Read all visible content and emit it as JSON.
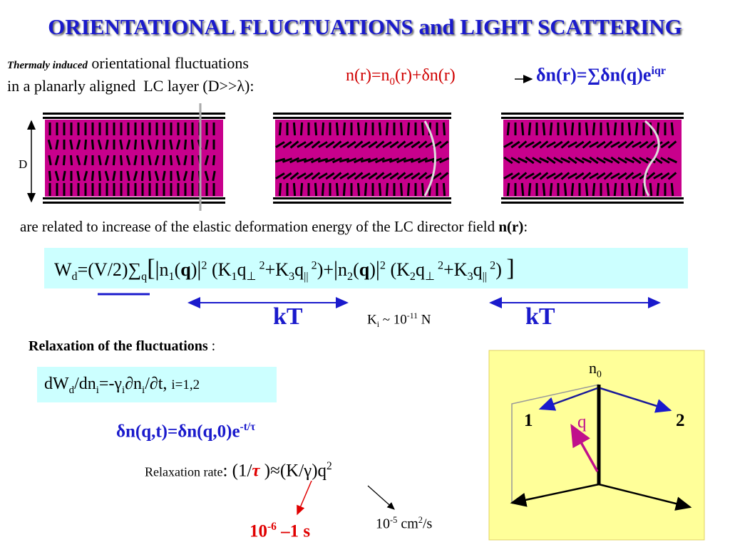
{
  "title": "ORIENTATIONAL FLUCTUATIONS and LIGHT SCATTERING",
  "intro": {
    "lead": "Thermaly induced",
    "line1": " orientational fluctuations",
    "line2": "in a planarly aligned  LC layer (D>>λ):"
  },
  "expansion": [
    "n(r)=n",
    "0",
    "(r)+δn(r)"
  ],
  "fourier": [
    "δn(r)=∑δn(q)e",
    "iqr"
  ],
  "layer_label": "D",
  "elastic": [
    "are related to increase of the elastic deformation energy of the LC director field ",
    "n(r)",
    ":"
  ],
  "energy": [
    "W",
    "d",
    "=(V/2)∑",
    "q",
    "[",
    "|",
    "n",
    "1",
    "(",
    "q",
    ")",
    "|",
    "2",
    " (K",
    "1",
    "q",
    "⊥",
    " 2",
    "+K",
    "3",
    "q",
    "||",
    " 2",
    ")+",
    "|",
    "n",
    "2",
    "(",
    "q",
    ")",
    "|",
    "2",
    " (K",
    "2",
    "q",
    "⊥",
    " 2",
    "+K",
    "3",
    "q",
    "||",
    " 2",
    ") ",
    "]"
  ],
  "kT_left": "kT",
  "kT_right": "kT",
  "constant": [
    "K",
    "i",
    " ~ 10",
    "-11",
    " N"
  ],
  "relaxation_heading": [
    "Relaxation of the fluctuations",
    " :"
  ],
  "relaxation_eq": [
    "dW",
    "d",
    "/dn",
    "i",
    "=-γ",
    "i",
    "∂n",
    "i",
    "/∂t, ",
    "i=1,2"
  ],
  "decay": [
    "δn(q,t)=δn(q,0)e",
    "-t/τ"
  ],
  "rate": [
    "Relaxation rate",
    ": (1/",
    "τ",
    " )≈(K/γ)q",
    "2"
  ],
  "time": [
    "10",
    "-6",
    " –1 s"
  ],
  "diffusivity": [
    "10",
    "-5",
    " cm",
    "2",
    "/s"
  ],
  "diagram": {
    "director": [
      "n",
      "0"
    ],
    "mode1": "1",
    "wavevector": "q",
    "mode2": "2"
  }
}
